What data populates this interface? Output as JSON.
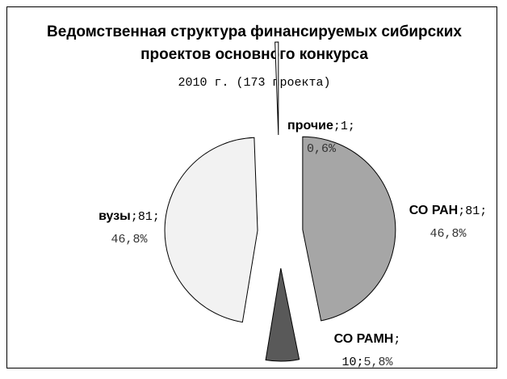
{
  "chart_data": {
    "type": "pie",
    "title": "Ведомственная структура финансируемых сибирских проектов основного конкурса",
    "subtitle": "2010 г. (173 проекта)",
    "categories": [
      "СО РАН",
      "СО РАМН",
      "вузы",
      "прочие"
    ],
    "values": [
      81,
      10,
      81,
      1
    ],
    "percentages": [
      46.8,
      5.8,
      46.8,
      0.6
    ],
    "percent_labels": [
      "46,8%",
      "5,8%",
      "46,8%",
      "0,6%"
    ],
    "separator": ";",
    "colors": [
      "#a6a6a6",
      "#595959",
      "#f2f2f2",
      "#ffffff"
    ]
  }
}
